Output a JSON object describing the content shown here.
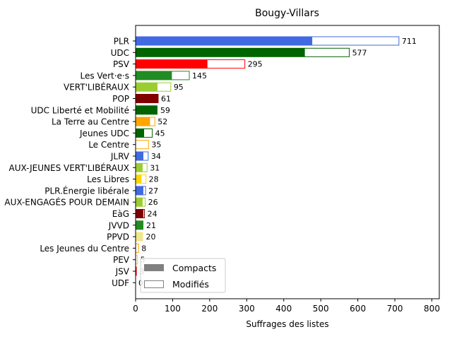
{
  "chart_data": {
    "type": "bar",
    "orientation": "horizontal",
    "stacked": true,
    "title": "Bougy-Villars",
    "xlabel": "Suffrages des listes",
    "ylabel": "",
    "xlim": [
      0,
      820
    ],
    "xticks": [
      0,
      100,
      200,
      300,
      400,
      500,
      600,
      700,
      800
    ],
    "grid": false,
    "legend_position": "lower-left",
    "legend": [
      {
        "label": "Compacts",
        "style": "filled",
        "color": "#808080"
      },
      {
        "label": "Modifiés",
        "style": "outline",
        "color": "#808080"
      }
    ],
    "categories": [
      "PLR",
      "UDC",
      "PSV",
      "Les Vert·e·s",
      "VERT'LIBÉRAUX",
      "POP",
      "UDC Liberté et Mobilité",
      "La Terre au Centre",
      "Jeunes UDC",
      "Le Centre",
      "JLRV",
      "AUX-JEUNES VERT'LIBÉRAUX",
      "Les Libres",
      "PLR.Énergie libérale",
      "AUX-ENGAGÉS POUR DEMAIN",
      "EàG",
      "JVVD",
      "PPVD",
      "Les Jeunes du Centre",
      "PEV",
      "JSV",
      "UDF"
    ],
    "colors": [
      "#4169e1",
      "#006400",
      "#ff0000",
      "#228b22",
      "#9acd32",
      "#800000",
      "#006400",
      "#ffa500",
      "#006400",
      "#ffa500",
      "#4169e1",
      "#9acd32",
      "#ffd700",
      "#4169e1",
      "#9acd32",
      "#800000",
      "#228b22",
      "#f0e68c",
      "#ffa500",
      "#ffd700",
      "#ff0000",
      "#4169e1"
    ],
    "series": [
      {
        "name": "Compacts",
        "values": [
          476,
          456,
          193,
          97,
          58,
          59,
          59,
          38,
          22,
          0,
          20,
          18,
          15,
          20,
          18,
          20,
          21,
          20,
          0,
          0,
          3,
          0
        ]
      },
      {
        "name": "Modifiés",
        "values": [
          235,
          121,
          102,
          48,
          37,
          2,
          0,
          14,
          23,
          35,
          14,
          13,
          13,
          7,
          8,
          4,
          0,
          0,
          8,
          5,
          0,
          0
        ]
      }
    ],
    "totals": [
      711,
      577,
      295,
      145,
      95,
      61,
      59,
      52,
      45,
      35,
      34,
      31,
      28,
      27,
      26,
      24,
      21,
      20,
      8,
      5,
      3,
      0
    ],
    "total_labels": [
      "711",
      "577",
      "295",
      "145",
      "95",
      "61",
      "59",
      "52",
      "45",
      "35",
      "34",
      "31",
      "28",
      "27",
      "26",
      "24",
      "21",
      "20",
      "8",
      "5",
      "3",
      "0"
    ]
  }
}
